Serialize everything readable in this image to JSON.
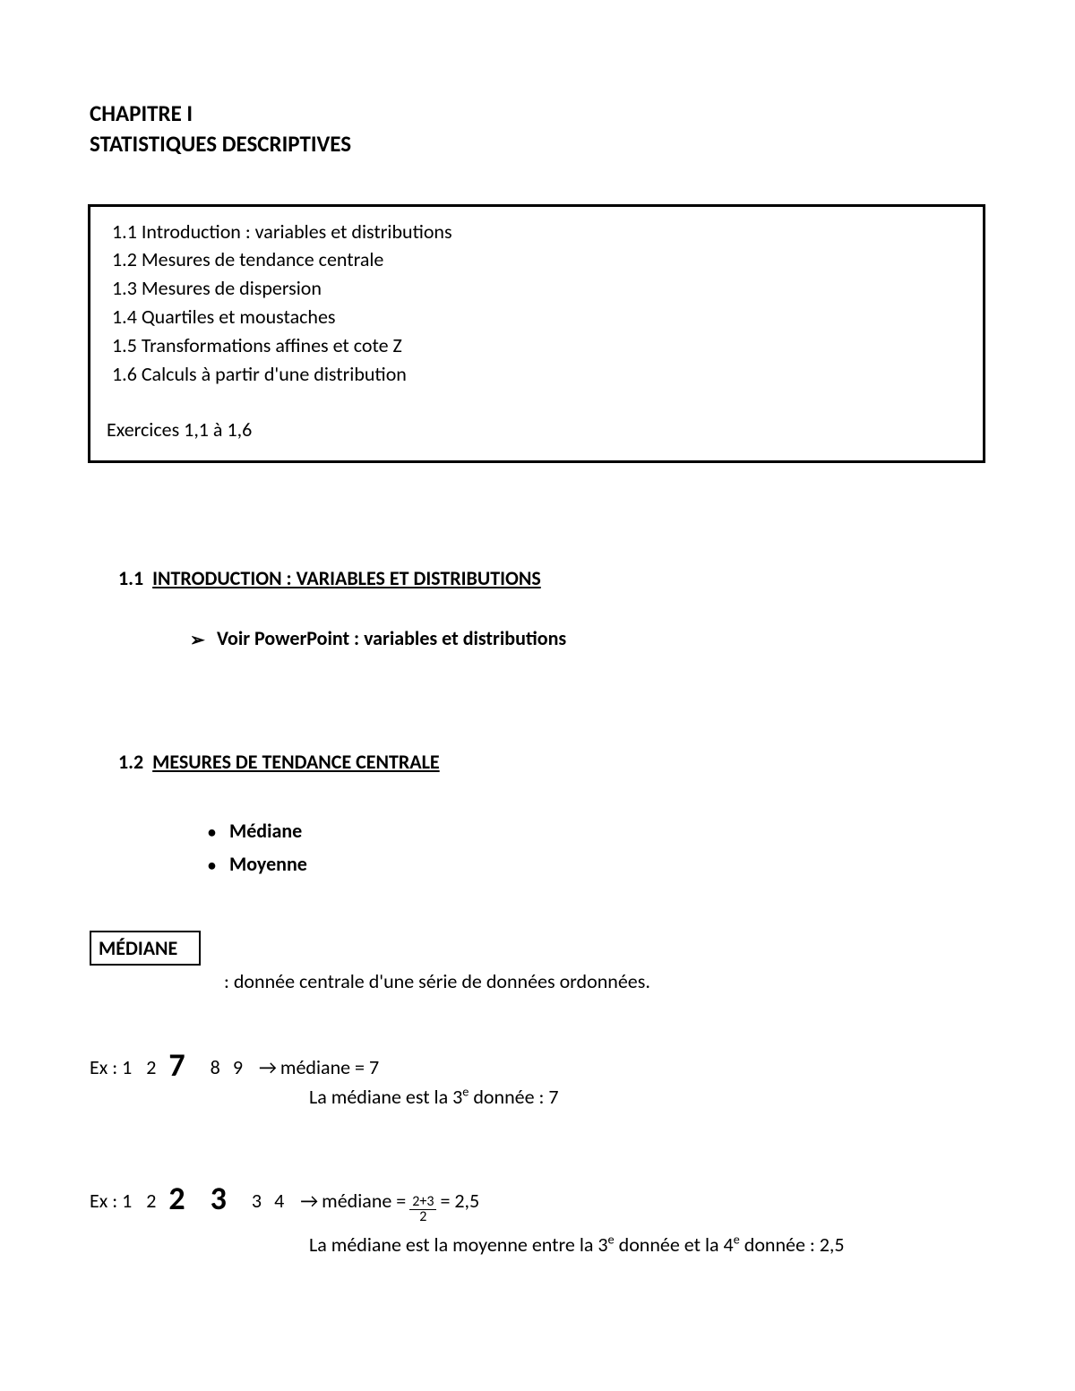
{
  "chapter": {
    "line1": "CHAPITRE I",
    "line2": "STATISTIQUES DESCRIPTIVES"
  },
  "toc": {
    "items": [
      "1.1 Introduction : variables et distributions",
      "1.2 Mesures de tendance centrale",
      "1.3 Mesures de dispersion",
      "1.4 Quartiles et moustaches",
      "1.5 Transformations affines et cote Z",
      "1.6 Calculs à partir d'une distribution"
    ],
    "exercises": "Exercices 1,1 à 1,6"
  },
  "section1": {
    "num": "1.1",
    "title": "INTRODUCTION : VARIABLES ET DISTRIBUTIONS",
    "bullet_text": "Voir PowerPoint : variables et distributions"
  },
  "section2": {
    "num": "1.2",
    "title": "MESURES DE TENDANCE CENTRALE",
    "bullets": [
      "Médiane",
      "Moyenne"
    ]
  },
  "mediane": {
    "box_label": "MÉDIANE",
    "definition": ": donnée centrale d'une série de données ordonnées.",
    "ex1": {
      "prefix": "Ex : 1",
      "d2": "2",
      "big": "7",
      "d4": "8",
      "d5": "9",
      "arrow": "→",
      "result": "médiane = 7",
      "sub": "La médiane est la 3",
      "sub_sup": "e",
      "sub_tail": " donnée : 7"
    },
    "ex2": {
      "prefix": "Ex : 1",
      "d2": "2",
      "big1": "2",
      "big2": "3",
      "d5": "3",
      "d6": "4",
      "arrow": "→",
      "mlabel": "médiane =",
      "frac_num": "2+3",
      "frac_den": "2",
      "tail": "= 2,5",
      "sub_a": "La médiane est la moyenne entre la 3",
      "sup1": "e",
      "sub_b": " donnée et la 4",
      "sup2": "e",
      "sub_c": " donnée : 2,5"
    }
  }
}
